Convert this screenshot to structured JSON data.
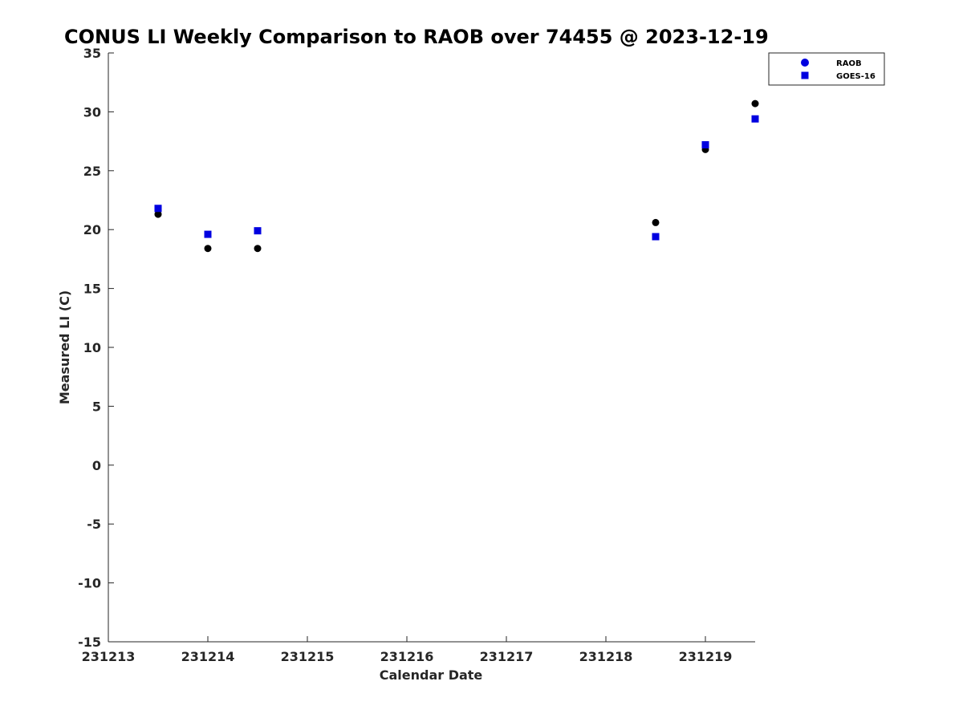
{
  "chart_data": {
    "type": "scatter",
    "title": "CONUS LI Weekly Comparison to RAOB over 74455 @ 2023-12-19",
    "xlabel": "Calendar Date",
    "ylabel": "Measured LI (C)",
    "xlim": [
      231213,
      231219.5
    ],
    "ylim": [
      -15,
      35
    ],
    "x_ticks": [
      231213,
      231214,
      231215,
      231216,
      231217,
      231218,
      231219
    ],
    "x_tick_labels": [
      "231213",
      "231214",
      "231215",
      "231216",
      "231217",
      "231218",
      "231219"
    ],
    "y_ticks": [
      -15,
      -10,
      -5,
      0,
      5,
      10,
      15,
      20,
      25,
      30,
      35
    ],
    "y_tick_labels": [
      "-15",
      "-10",
      "-5",
      "0",
      "5",
      "10",
      "15",
      "20",
      "25",
      "30",
      "35"
    ],
    "grid": false,
    "legend_position": "top-right",
    "legend": [
      {
        "label": "RAOB",
        "marker": "circle",
        "color": "#0000e0"
      },
      {
        "label": "GOES-16",
        "marker": "square",
        "color": "#0000e0"
      }
    ],
    "series": [
      {
        "name": "RAOB",
        "marker": "circle",
        "color": "#000000",
        "x": [
          231213.5,
          231214.0,
          231214.5,
          231218.5,
          231219.0,
          231219.5
        ],
        "y": [
          21.3,
          18.4,
          18.4,
          20.6,
          26.8,
          30.7
        ]
      },
      {
        "name": "GOES-16",
        "marker": "square",
        "color": "#0000e0",
        "x": [
          231213.5,
          231214.0,
          231214.5,
          231218.5,
          231219.0,
          231219.5
        ],
        "y": [
          21.8,
          19.6,
          19.9,
          19.4,
          27.2,
          29.4
        ]
      }
    ]
  }
}
